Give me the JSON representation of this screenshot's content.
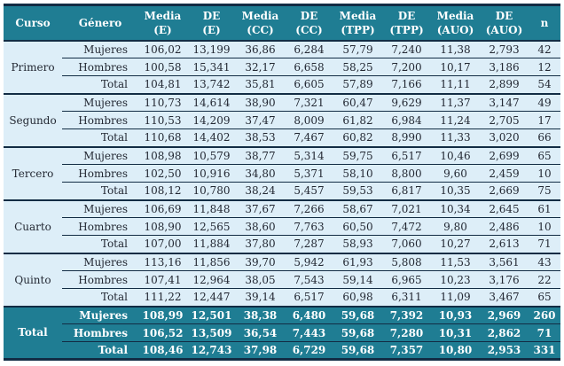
{
  "colors": {
    "header_bg": "#1f7d93",
    "row_bg": "#ddeef8",
    "border_dark": "#122c44",
    "header_text": "#ffffff",
    "body_text": "#232833"
  },
  "table": {
    "header": {
      "curso": "Curso",
      "genero": "Género",
      "metrics": [
        {
          "line1": "Media",
          "line2": "(E)"
        },
        {
          "line1": "DE",
          "line2": "(E)"
        },
        {
          "line1": "Media",
          "line2": "(CC)"
        },
        {
          "line1": "DE",
          "line2": "(CC)"
        },
        {
          "line1": "Media",
          "line2": "(TPP)"
        },
        {
          "line1": "DE",
          "line2": "(TPP)"
        },
        {
          "line1": "Media",
          "line2": "(AUO)"
        },
        {
          "line1": "DE",
          "line2": "(AUO)"
        }
      ],
      "n": "n"
    },
    "groups": [
      {
        "curso": "Primero",
        "rows": [
          {
            "genero": "Mujeres",
            "values": [
              "106,02",
              "13,199",
              "36,86",
              "6,284",
              "57,79",
              "7,240",
              "11,38",
              "2,793",
              "42"
            ]
          },
          {
            "genero": "Hombres",
            "values": [
              "100,58",
              "15,341",
              "32,17",
              "6,658",
              "58,25",
              "7,200",
              "10,17",
              "3,186",
              "12"
            ]
          },
          {
            "genero": "Total",
            "values": [
              "104,81",
              "13,742",
              "35,81",
              "6,605",
              "57,89",
              "7,166",
              "11,11",
              "2,899",
              "54"
            ]
          }
        ]
      },
      {
        "curso": "Segundo",
        "rows": [
          {
            "genero": "Mujeres",
            "values": [
              "110,73",
              "14,614",
              "38,90",
              "7,321",
              "60,47",
              "9,629",
              "11,37",
              "3,147",
              "49"
            ]
          },
          {
            "genero": "Hombres",
            "values": [
              "110,53",
              "14,209",
              "37,47",
              "8,009",
              "61,82",
              "6,984",
              "11,24",
              "2,705",
              "17"
            ]
          },
          {
            "genero": "Total",
            "values": [
              "110,68",
              "14,402",
              "38,53",
              "7,467",
              "60,82",
              "8,990",
              "11,33",
              "3,020",
              "66"
            ]
          }
        ]
      },
      {
        "curso": "Tercero",
        "rows": [
          {
            "genero": "Mujeres",
            "values": [
              "108,98",
              "10,579",
              "38,77",
              "5,314",
              "59,75",
              "6,517",
              "10,46",
              "2,699",
              "65"
            ]
          },
          {
            "genero": "Hombres",
            "values": [
              "102,50",
              "10,916",
              "34,80",
              "5,371",
              "58,10",
              "8,800",
              "9,60",
              "2,459",
              "10"
            ]
          },
          {
            "genero": "Total",
            "values": [
              "108,12",
              "10,780",
              "38,24",
              "5,457",
              "59,53",
              "6,817",
              "10,35",
              "2,669",
              "75"
            ]
          }
        ]
      },
      {
        "curso": "Cuarto",
        "rows": [
          {
            "genero": "Mujeres",
            "values": [
              "106,69",
              "11,848",
              "37,67",
              "7,266",
              "58,67",
              "7,021",
              "10,34",
              "2,645",
              "61"
            ]
          },
          {
            "genero": "Hombres",
            "values": [
              "108,90",
              "12,565",
              "38,60",
              "7,763",
              "60,50",
              "7,472",
              "9,80",
              "2,486",
              "10"
            ]
          },
          {
            "genero": "Total",
            "values": [
              "107,00",
              "11,884",
              "37,80",
              "7,287",
              "58,93",
              "7,060",
              "10,27",
              "2,613",
              "71"
            ]
          }
        ]
      },
      {
        "curso": "Quinto",
        "rows": [
          {
            "genero": "Mujeres",
            "values": [
              "113,16",
              "11,856",
              "39,70",
              "5,942",
              "61,93",
              "5,808",
              "11,53",
              "3,561",
              "43"
            ]
          },
          {
            "genero": "Hombres",
            "values": [
              "107,41",
              "12,964",
              "38,05",
              "7,543",
              "59,14",
              "6,965",
              "10,23",
              "3,176",
              "22"
            ]
          },
          {
            "genero": "Total",
            "values": [
              "111,22",
              "12,447",
              "39,14",
              "6,517",
              "60,98",
              "6,311",
              "11,09",
              "3,467",
              "65"
            ]
          }
        ]
      }
    ],
    "footer": {
      "curso": "Total",
      "rows": [
        {
          "genero": "Mujeres",
          "values": [
            "108,99",
            "12,501",
            "38,38",
            "6,480",
            "59,68",
            "7,392",
            "10,93",
            "2,969",
            "260"
          ]
        },
        {
          "genero": "Hombres",
          "values": [
            "106,52",
            "13,509",
            "36,54",
            "7,443",
            "59,68",
            "7,280",
            "10,31",
            "2,862",
            "71"
          ]
        },
        {
          "genero": "Total",
          "values": [
            "108,46",
            "12,743",
            "37,98",
            "6,729",
            "59,68",
            "7,357",
            "10,80",
            "2,953",
            "331"
          ]
        }
      ]
    }
  }
}
